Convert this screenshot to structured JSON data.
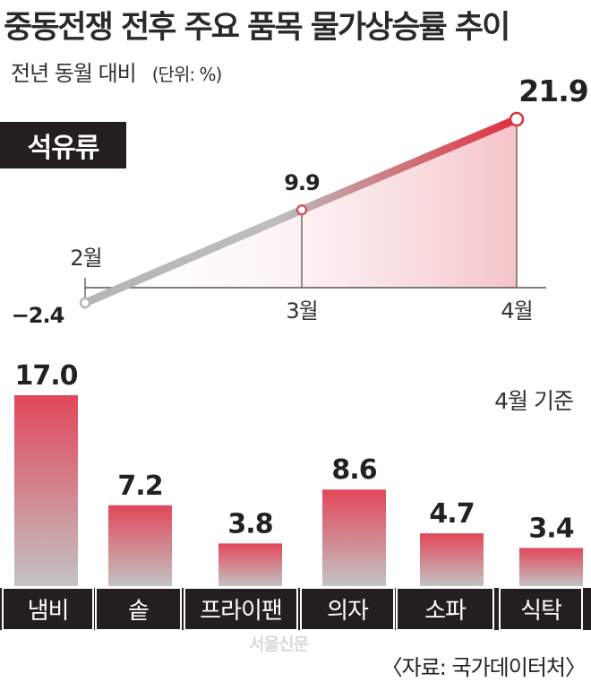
{
  "header": {
    "title": "중동전쟁 전후 주요 품목 물가상승률 추이",
    "subtitle": "전년 동월 대비",
    "unit": "(단위: %)"
  },
  "chart_data": [
    {
      "type": "line",
      "series": [
        {
          "name": "석유류",
          "values": [
            -2.4,
            9.9,
            21.9
          ]
        }
      ],
      "categories": [
        "2월",
        "3월",
        "4월"
      ],
      "value_labels": [
        "−2.4",
        "9.9",
        "21.9"
      ],
      "colors": {
        "start": "#b5b5b5",
        "end": "#e0303f",
        "area": "#f3b9bf"
      }
    },
    {
      "type": "bar",
      "note": "4월 기준",
      "categories": [
        "냄비",
        "솥",
        "프라이팬",
        "의자",
        "소파",
        "식탁"
      ],
      "values": [
        17.0,
        7.2,
        3.8,
        8.6,
        4.7,
        3.4
      ],
      "value_labels": [
        "17.0",
        "7.2",
        "3.8",
        "8.6",
        "4.7",
        "3.4"
      ],
      "colors": {
        "top": "#e2475a",
        "bottom": "#c3c3c3",
        "label_bg": "#231f20"
      }
    }
  ],
  "footer": {
    "stamp": "서울신문",
    "source": "〈자료: 국가데이터처〉"
  }
}
